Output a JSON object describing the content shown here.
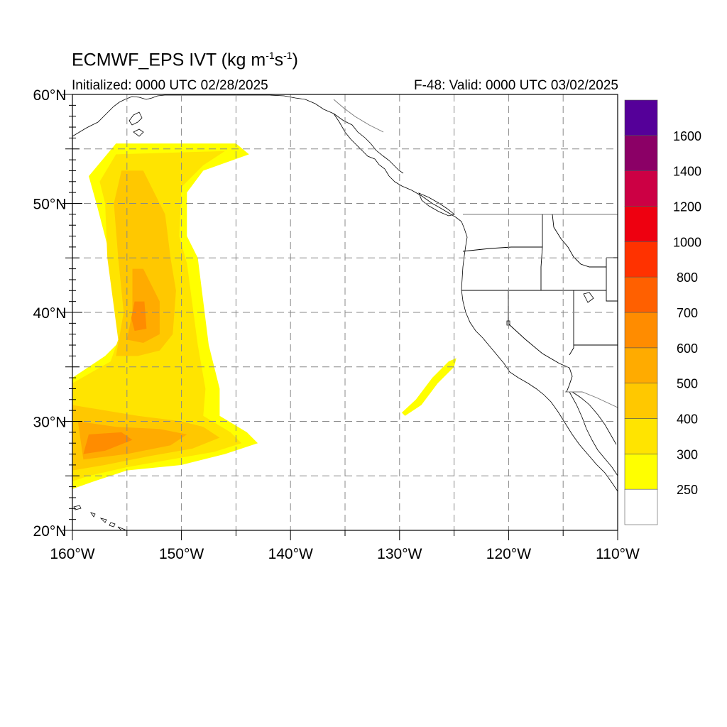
{
  "header": {
    "title_prefix": "ECMWF_EPS IVT (kg m",
    "title_exp1": "-1",
    "title_mid": "s",
    "title_exp2": "-1",
    "title_suffix": ")",
    "initialized": "Initialized: 0000 UTC 02/28/2025",
    "valid": "F-48: Valid: 0000 UTC 03/02/2025"
  },
  "map": {
    "lon_range": [
      -160,
      -110
    ],
    "lat_range": [
      20,
      60
    ],
    "grid": "dashed",
    "lon_ticks": [
      {
        "value": -160,
        "label": "160°W"
      },
      {
        "value": -150,
        "label": "150°W"
      },
      {
        "value": -140,
        "label": "140°W"
      },
      {
        "value": -130,
        "label": "130°W"
      },
      {
        "value": -120,
        "label": "120°W"
      },
      {
        "value": -110,
        "label": "110°W"
      }
    ],
    "lat_ticks": [
      {
        "value": 60,
        "label": "60°N"
      },
      {
        "value": 50,
        "label": "50°N"
      },
      {
        "value": 40,
        "label": "40°N"
      },
      {
        "value": 30,
        "label": "30°N"
      },
      {
        "value": 20,
        "label": "20°N"
      }
    ]
  },
  "chart_data": {
    "type": "heatmap",
    "title": "ECMWF_EPS IVT (kg m-1s-1)",
    "xlabel": "",
    "ylabel": "",
    "xlim": [
      -160,
      -110
    ],
    "ylim": [
      20,
      60
    ],
    "legend": "right",
    "colorbar": {
      "levels": [
        250,
        300,
        400,
        500,
        600,
        700,
        800,
        1000,
        1200,
        1400,
        1600
      ],
      "labels": [
        "250",
        "300",
        "400",
        "500",
        "600",
        "700",
        "800",
        "1000",
        "1200",
        "1400",
        "1600"
      ],
      "colors": [
        "#ffffff",
        "#ffff00",
        "#ffe400",
        "#ffc800",
        "#ffab00",
        "#ff8c00",
        "#ff6000",
        "#ff3200",
        "#ee0010",
        "#cc0044",
        "#8b0066",
        "#550099"
      ]
    },
    "regions": [
      {
        "level": 250,
        "color": "#ffff00",
        "polygon": [
          [
            -158.5,
            52.5
          ],
          [
            -156,
            55.5
          ],
          [
            -145,
            55.5
          ],
          [
            -143.8,
            54.5
          ],
          [
            -148,
            53
          ],
          [
            -149.5,
            51
          ],
          [
            -149.5,
            47
          ],
          [
            -148.5,
            45
          ],
          [
            -147.5,
            37
          ],
          [
            -146.5,
            33
          ],
          [
            -146.5,
            30.5
          ],
          [
            -144,
            29
          ],
          [
            -143,
            28
          ],
          [
            -146,
            27
          ],
          [
            -150,
            26
          ],
          [
            -155,
            25.5
          ],
          [
            -158,
            24.5
          ],
          [
            -160,
            23.8
          ],
          [
            -160,
            34
          ],
          [
            -157,
            36
          ],
          [
            -155.5,
            37.5
          ],
          [
            -156.5,
            45
          ],
          [
            -157.8,
            50
          ]
        ]
      },
      {
        "level": 300,
        "color": "#ffe400",
        "polygon": [
          [
            -157.5,
            52
          ],
          [
            -156,
            54.5
          ],
          [
            -146,
            54.8
          ],
          [
            -148,
            53.5
          ],
          [
            -150,
            51.5
          ],
          [
            -150.2,
            47
          ],
          [
            -149.5,
            44.5
          ],
          [
            -148.5,
            37
          ],
          [
            -147.8,
            33
          ],
          [
            -148,
            30.5
          ],
          [
            -145.5,
            29
          ],
          [
            -144.5,
            28
          ],
          [
            -147,
            27.2
          ],
          [
            -151,
            26.5
          ],
          [
            -155,
            25.8
          ],
          [
            -158.5,
            25
          ],
          [
            -160,
            24.5
          ],
          [
            -160,
            33.5
          ],
          [
            -156.5,
            35.5
          ],
          [
            -155.8,
            37.5
          ],
          [
            -156.8,
            45
          ],
          [
            -157,
            50
          ]
        ]
      },
      {
        "level": 400,
        "color": "#ffc800",
        "polygon": [
          [
            -155.5,
            53
          ],
          [
            -153.5,
            53
          ],
          [
            -151.5,
            49
          ],
          [
            -151,
            45
          ],
          [
            -150.5,
            42
          ],
          [
            -150.8,
            38
          ],
          [
            -152,
            36.5
          ],
          [
            -154,
            36
          ],
          [
            -156,
            36
          ],
          [
            -155.3,
            40
          ],
          [
            -155.8,
            45
          ],
          [
            -156.2,
            50
          ]
        ]
      },
      {
        "level": 400,
        "color": "#ffc800",
        "polygon": [
          [
            -160,
            31.5
          ],
          [
            -154,
            30.5
          ],
          [
            -150,
            30
          ],
          [
            -148,
            29.5
          ],
          [
            -146.5,
            28.5
          ],
          [
            -149,
            27.5
          ],
          [
            -153,
            26.8
          ],
          [
            -157,
            26
          ],
          [
            -160,
            25.5
          ]
        ]
      },
      {
        "level": 500,
        "color": "#ffab00",
        "polygon": [
          [
            -154.5,
            44
          ],
          [
            -153.5,
            44
          ],
          [
            -152,
            41
          ],
          [
            -152,
            38
          ],
          [
            -153.5,
            37.2
          ],
          [
            -155,
            37.5
          ],
          [
            -154.5,
            40
          ]
        ]
      },
      {
        "level": 500,
        "color": "#ffab00",
        "polygon": [
          [
            -159.5,
            30
          ],
          [
            -156,
            29.5
          ],
          [
            -152,
            29.3
          ],
          [
            -149.5,
            28.8
          ],
          [
            -151,
            27.8
          ],
          [
            -155,
            27
          ],
          [
            -159,
            26.5
          ]
        ]
      },
      {
        "level": 600,
        "color": "#ff8c00",
        "polygon": [
          [
            -154.3,
            41
          ],
          [
            -153.4,
            41
          ],
          [
            -153.2,
            38.5
          ],
          [
            -154.3,
            38.3
          ],
          [
            -154.6,
            39.5
          ]
        ]
      },
      {
        "level": 600,
        "color": "#ff8c00",
        "polygon": [
          [
            -158.5,
            28.8
          ],
          [
            -155.5,
            29
          ],
          [
            -154.5,
            28.3
          ],
          [
            -157,
            27.3
          ],
          [
            -159,
            27
          ]
        ]
      },
      {
        "level": 250,
        "color": "#ffff00",
        "polygon": [
          [
            -129.5,
            30.5
          ],
          [
            -128,
            31.5
          ],
          [
            -126.5,
            33.5
          ],
          [
            -125,
            35
          ],
          [
            -124.8,
            35.8
          ],
          [
            -125.5,
            35.5
          ],
          [
            -127,
            34
          ],
          [
            -128.5,
            32
          ],
          [
            -129.8,
            30.8
          ]
        ]
      }
    ]
  }
}
